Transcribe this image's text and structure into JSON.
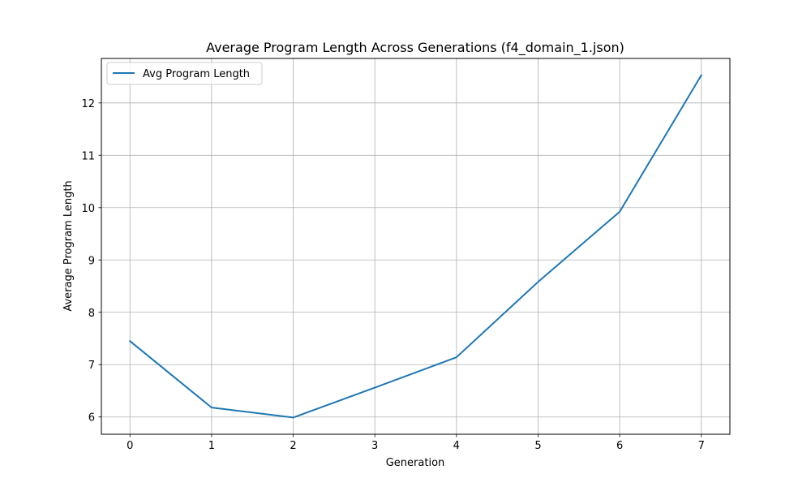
{
  "chart_data": {
    "type": "line",
    "title": "Average Program Length Across Generations (f4_domain_1.json)",
    "xlabel": "Generation",
    "ylabel": "Average Program Length",
    "x": [
      0,
      1,
      2,
      3,
      4,
      5,
      6,
      7
    ],
    "series": [
      {
        "name": "Avg Program Length",
        "values": [
          7.45,
          6.18,
          5.99,
          6.56,
          7.14,
          8.58,
          9.92,
          12.53
        ],
        "color": "#1f77b4"
      }
    ],
    "xlim": [
      -0.35,
      7.35
    ],
    "ylim": [
      5.67,
      12.85
    ],
    "xticks": [
      0,
      1,
      2,
      3,
      4,
      5,
      6,
      7
    ],
    "yticks": [
      6,
      7,
      8,
      9,
      10,
      11,
      12
    ],
    "grid": true,
    "legend_position": "upper-left"
  }
}
